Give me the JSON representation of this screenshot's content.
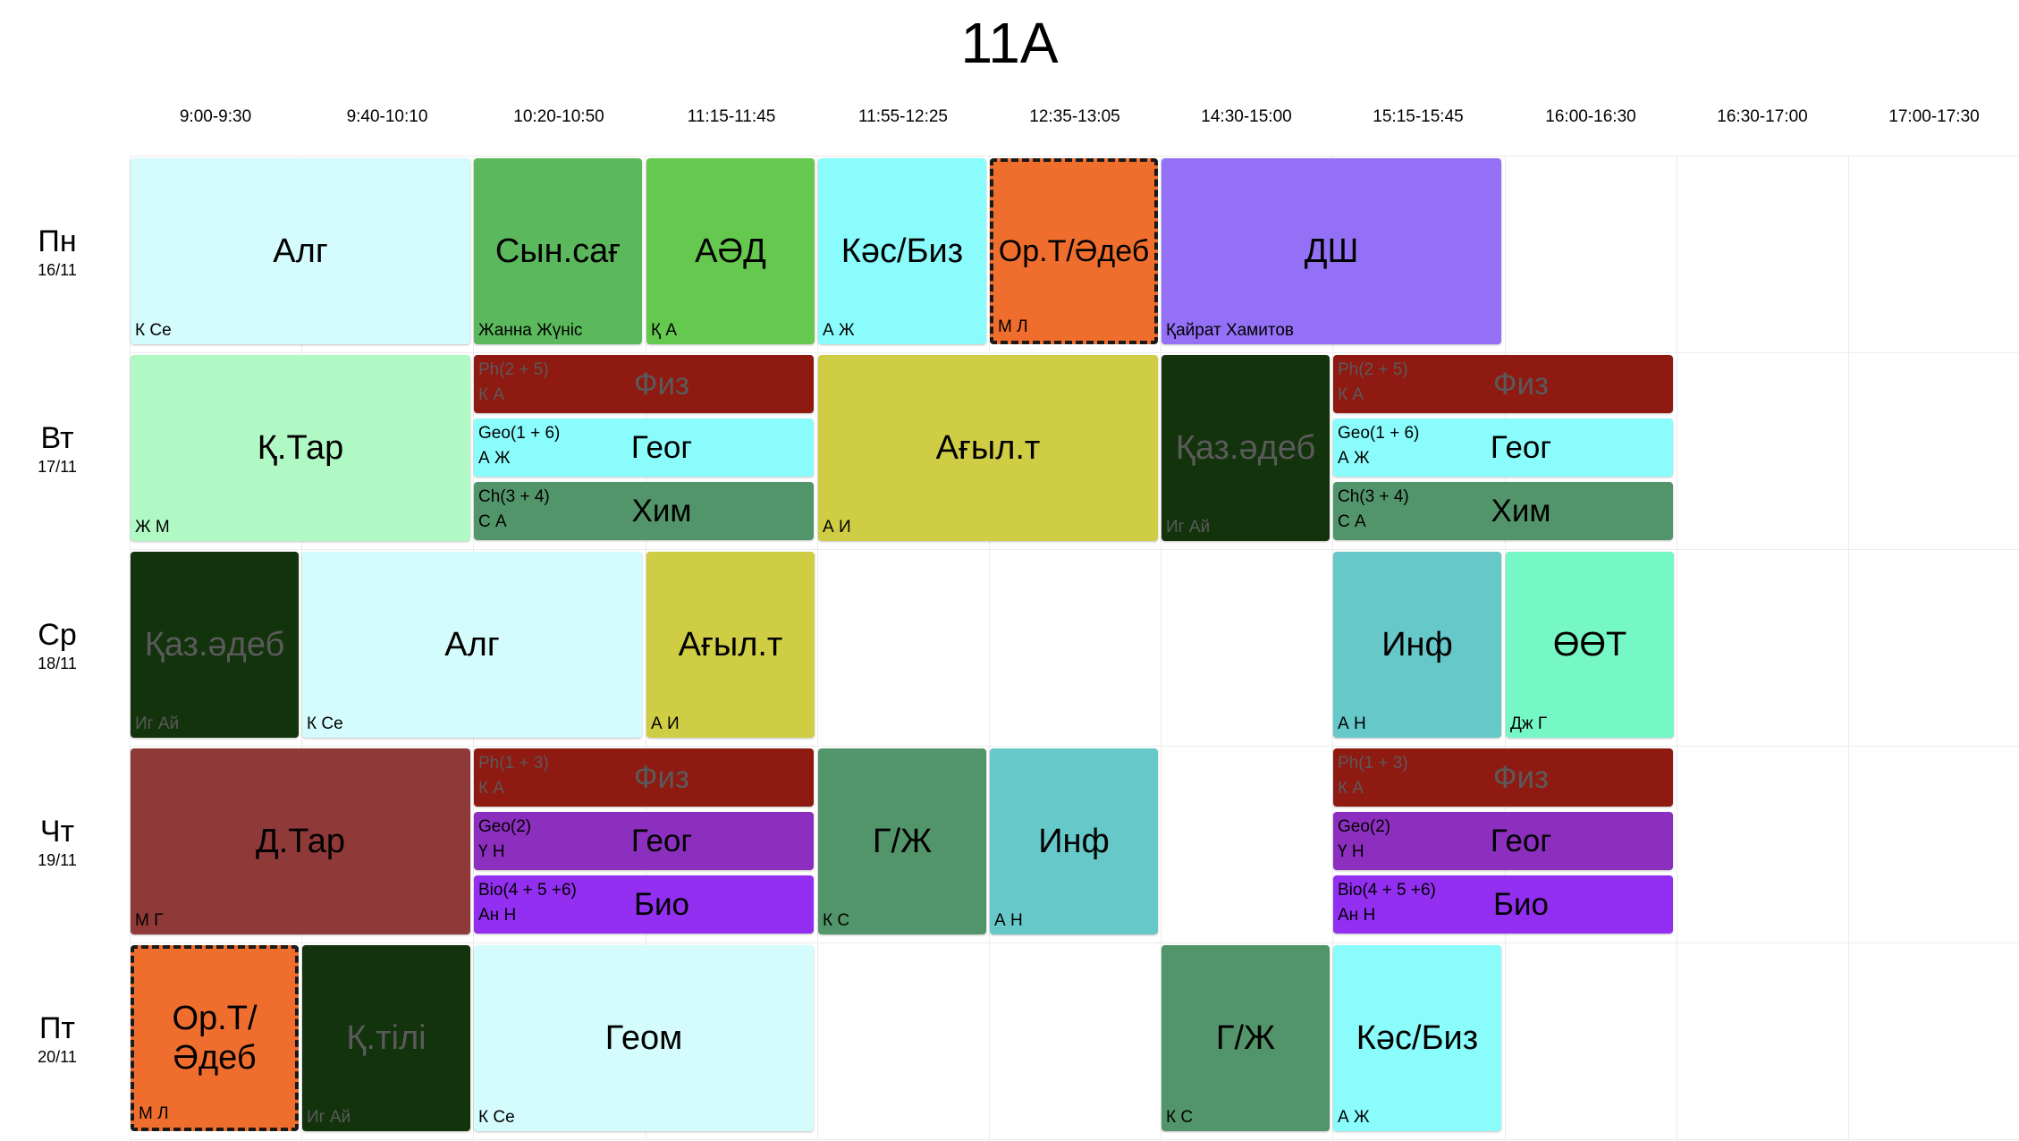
{
  "title": "11A",
  "times": [
    "9:00-9:30",
    "9:40-10:10",
    "10:20-10:50",
    "11:15-11:45",
    "11:55-12:25",
    "12:35-13:05",
    "14:30-15:00",
    "15:15-15:45",
    "16:00-16:30",
    "16:30-17:00",
    "17:00-17:30"
  ],
  "days": [
    {
      "name": "Пн",
      "date": "16/11"
    },
    {
      "name": "Вт",
      "date": "17/11"
    },
    {
      "name": "Ср",
      "date": "18/11"
    },
    {
      "name": "Чт",
      "date": "19/11"
    },
    {
      "name": "Пт",
      "date": "20/11"
    }
  ],
  "lessons": [
    {
      "day": 0,
      "start": 0,
      "span": 2,
      "subject": "Алг",
      "teacher": "К Се",
      "color": "#d4fcfc"
    },
    {
      "day": 0,
      "start": 2,
      "span": 1,
      "subject": "Сын.сағ",
      "teacher": "Жанна Жүніс",
      "color": "#5cb85c"
    },
    {
      "day": 0,
      "start": 3,
      "span": 1,
      "subject": "АӘД",
      "teacher": "Қ А",
      "color": "#66c94f"
    },
    {
      "day": 0,
      "start": 4,
      "span": 1,
      "subject": "Кәс/Биз",
      "teacher": "А Ж",
      "color": "#8afcfc"
    },
    {
      "day": 0,
      "start": 5,
      "span": 1,
      "subject": "Ор.Т/Әдеб",
      "teacher": "М Л",
      "color": "#ef6e2e",
      "dashed": true
    },
    {
      "day": 0,
      "start": 6,
      "span": 2,
      "subject": "ДШ",
      "teacher": "Қайрат Хамитов",
      "color": "#9370f5"
    },
    {
      "day": 1,
      "start": 0,
      "span": 2,
      "subject": "Қ.Тар",
      "teacher": "Ж М",
      "color": "#b0f8c4"
    },
    {
      "day": 1,
      "start": 2,
      "span": 2,
      "part": 0,
      "group": "Ph(2 + 5)",
      "subject": "Физ",
      "teacher": "К А",
      "color": "#8f1a12"
    },
    {
      "day": 1,
      "start": 2,
      "span": 2,
      "part": 1,
      "group": "Geo(1 + 6)",
      "subject": "Геог",
      "teacher": "А Ж",
      "color": "#8afcfc"
    },
    {
      "day": 1,
      "start": 2,
      "span": 2,
      "part": 2,
      "group": "Ch(3 + 4)",
      "subject": "Хим",
      "teacher": "С А",
      "color": "#53956a"
    },
    {
      "day": 1,
      "start": 4,
      "span": 2,
      "subject": "Ағыл.т",
      "teacher": "А И",
      "color": "#cfcd44"
    },
    {
      "day": 1,
      "start": 6,
      "span": 1,
      "subject": "Қаз.әдеб",
      "teacher": "Иг Ай",
      "color": "#12330c"
    },
    {
      "day": 1,
      "start": 7,
      "span": 2,
      "part": 0,
      "group": "Ph(2 + 5)",
      "subject": "Физ",
      "teacher": "К А",
      "color": "#8f1a12"
    },
    {
      "day": 1,
      "start": 7,
      "span": 2,
      "part": 1,
      "group": "Geo(1 + 6)",
      "subject": "Геог",
      "teacher": "А Ж",
      "color": "#8afcfc"
    },
    {
      "day": 1,
      "start": 7,
      "span": 2,
      "part": 2,
      "group": "Ch(3 + 4)",
      "subject": "Хим",
      "teacher": "С А",
      "color": "#53956a"
    },
    {
      "day": 2,
      "start": 0,
      "span": 1,
      "subject": "Қаз.әдеб",
      "teacher": "Иг Ай",
      "color": "#12330c"
    },
    {
      "day": 2,
      "start": 1,
      "span": 2,
      "subject": "Алг",
      "teacher": "К Се",
      "color": "#d4fcfc"
    },
    {
      "day": 2,
      "start": 3,
      "span": 1,
      "subject": "Ағыл.т",
      "teacher": "А И",
      "color": "#cfcd44"
    },
    {
      "day": 2,
      "start": 7,
      "span": 1,
      "subject": "Инф",
      "teacher": "А Н",
      "color": "#66c8c8"
    },
    {
      "day": 2,
      "start": 8,
      "span": 1,
      "subject": "ӨӨТ",
      "teacher": "Дж Г",
      "color": "#76f8c6"
    },
    {
      "day": 3,
      "start": 0,
      "span": 2,
      "subject": "Д.Тар",
      "teacher": "М Г",
      "color": "#8f3a38"
    },
    {
      "day": 3,
      "start": 2,
      "span": 2,
      "part": 0,
      "group": "Ph(1 + 3)",
      "subject": "Физ",
      "teacher": "К А",
      "color": "#8f1a12"
    },
    {
      "day": 3,
      "start": 2,
      "span": 2,
      "part": 1,
      "group": "Geo(2)",
      "subject": "Геог",
      "teacher": "Ү Н",
      "color": "#8c2fbe"
    },
    {
      "day": 3,
      "start": 2,
      "span": 2,
      "part": 2,
      "group": "Bio(4 + 5 +6)",
      "subject": "Био",
      "teacher": "Ан Н",
      "color": "#922ff0"
    },
    {
      "day": 3,
      "start": 4,
      "span": 1,
      "subject": "Г/Ж",
      "teacher": "К С",
      "color": "#53956a"
    },
    {
      "day": 3,
      "start": 5,
      "span": 1,
      "subject": "Инф",
      "teacher": "А Н",
      "color": "#66c8c8"
    },
    {
      "day": 3,
      "start": 7,
      "span": 2,
      "part": 0,
      "group": "Ph(1 + 3)",
      "subject": "Физ",
      "teacher": "К А",
      "color": "#8f1a12"
    },
    {
      "day": 3,
      "start": 7,
      "span": 2,
      "part": 1,
      "group": "Geo(2)",
      "subject": "Геог",
      "teacher": "Ү Н",
      "color": "#8c2fbe"
    },
    {
      "day": 3,
      "start": 7,
      "span": 2,
      "part": 2,
      "group": "Bio(4 + 5 +6)",
      "subject": "Био",
      "teacher": "Ан Н",
      "color": "#922ff0"
    },
    {
      "day": 4,
      "start": 0,
      "span": 1,
      "subject": "Ор.Т/\nӘдеб",
      "teacher": "М Л",
      "color": "#ef6e2e",
      "dashed": true
    },
    {
      "day": 4,
      "start": 1,
      "span": 1,
      "subject": "Қ.тілі",
      "teacher": "Иг Ай",
      "color": "#12330c"
    },
    {
      "day": 4,
      "start": 2,
      "span": 2,
      "subject": "Геом",
      "teacher": "К Се",
      "color": "#d4fcfc"
    },
    {
      "day": 4,
      "start": 6,
      "span": 1,
      "subject": "Г/Ж",
      "teacher": "К С",
      "color": "#53956a"
    },
    {
      "day": 4,
      "start": 7,
      "span": 1,
      "subject": "Кәс/Биз",
      "teacher": "А Ж",
      "color": "#8afcfc"
    }
  ]
}
